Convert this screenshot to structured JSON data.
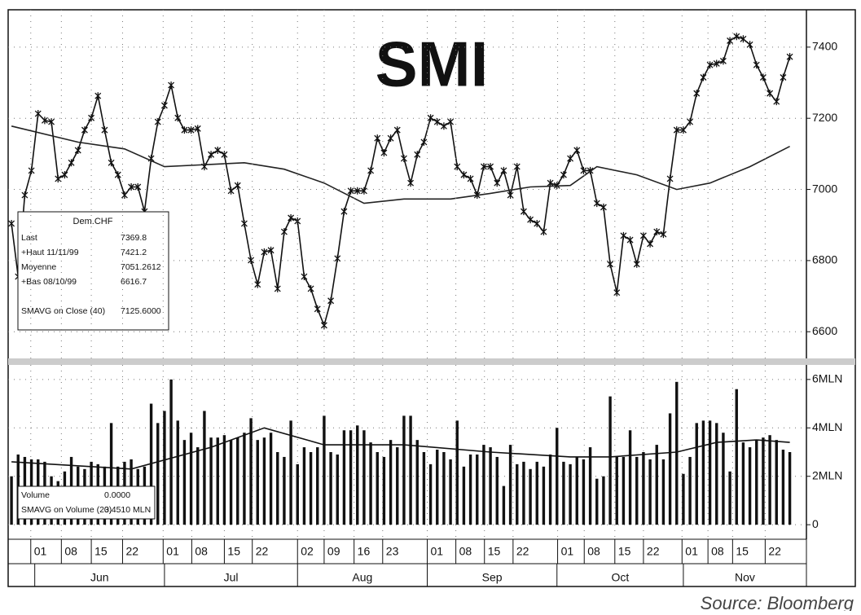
{
  "chart_data": [
    {
      "type": "line",
      "title": "SMI",
      "xlim": [
        -0.5,
        119.5
      ],
      "ylim": [
        6525,
        7505
      ],
      "yticks": [
        6600,
        6800,
        7000,
        7200,
        7400
      ],
      "grid": true,
      "series": [
        {
          "name": "Dem.CHF",
          "color": "#111111",
          "marker": true,
          "values": [
            6904,
            6755,
            6984,
            7053,
            7213,
            7194,
            7190,
            7030,
            7041,
            7075,
            7110,
            7167,
            7201,
            7263,
            7167,
            7075,
            7041,
            6984,
            7007,
            7007,
            6938,
            7087,
            7190,
            7236,
            7293,
            7201,
            7167,
            7167,
            7171,
            7064,
            7098,
            7110,
            7098,
            6996,
            7011,
            6904,
            6801,
            6733,
            6824,
            6829,
            6721,
            6881,
            6920,
            6911,
            6755,
            6721,
            6664,
            6618,
            6687,
            6806,
            6938,
            6996,
            6996,
            6996,
            7053,
            7144,
            7103,
            7144,
            7167,
            7087,
            7018,
            7098,
            7133,
            7201,
            7190,
            7178,
            7190,
            7064,
            7041,
            7030,
            6984,
            7064,
            7064,
            7018,
            7053,
            6984,
            7064,
            6938,
            6915,
            6904,
            6881,
            7018,
            7011,
            7041,
            7087,
            7110,
            7053,
            7053,
            6961,
            6950,
            6790,
            6710,
            6870,
            6858,
            6790,
            6870,
            6847,
            6881,
            6874,
            7030,
            7167,
            7167,
            7190,
            7270,
            7315,
            7350,
            7354,
            7361,
            7418,
            7430,
            7423,
            7407,
            7350,
            7315,
            7270,
            7247,
            7315,
            7373
          ]
        },
        {
          "name": "SMAVG on Close (40)",
          "color": "#222222",
          "legend_value": "7125.6000",
          "x": [
            0,
            10,
            17,
            23,
            35,
            41,
            47,
            53,
            59,
            66,
            72,
            78,
            84,
            88,
            94,
            100,
            105,
            111,
            117
          ],
          "values": [
            7178,
            7133,
            7114,
            7064,
            7075,
            7057,
            7018,
            6961,
            6973,
            6973,
            6989,
            7007,
            7011,
            7064,
            7041,
            7000,
            7018,
            7064,
            7121
          ]
        }
      ],
      "legend_box": {
        "rows": [
          {
            "label": "Last",
            "value": "7369.8"
          },
          {
            "label": "+Haut 11/11/99",
            "value": "7421.2"
          },
          {
            "label": "Moyenne",
            "value": "7051.2612"
          },
          {
            "label": "+Bas 08/10/99",
            "value": "6616.7"
          }
        ]
      }
    },
    {
      "type": "bar",
      "xlim": [
        -0.5,
        119.5
      ],
      "ylim": [
        -0.6,
        6.6
      ],
      "yticks": [
        {
          "value": 6,
          "label": "6MLN"
        },
        {
          "value": 4,
          "label": "4MLN"
        },
        {
          "value": 2,
          "label": "2MLN"
        },
        0
      ],
      "grid": true,
      "xticks": [
        {
          "value": 2.9,
          "label": "01"
        },
        {
          "value": 7.5,
          "label": "08"
        },
        {
          "value": 12,
          "label": "15"
        },
        {
          "value": 16.7,
          "label": "22"
        },
        {
          "value": 22.8,
          "label": "01"
        },
        {
          "value": 27.1,
          "label": "08"
        },
        {
          "value": 32,
          "label": "15"
        },
        {
          "value": 36.2,
          "label": "22"
        },
        {
          "value": 43,
          "label": "02"
        },
        {
          "value": 47,
          "label": "09"
        },
        {
          "value": 51.5,
          "label": "16"
        },
        {
          "value": 55.8,
          "label": "23"
        },
        {
          "value": 62.5,
          "label": "01"
        },
        {
          "value": 66.8,
          "label": "08"
        },
        {
          "value": 71.1,
          "label": "15"
        },
        {
          "value": 75.4,
          "label": "22"
        },
        {
          "value": 82.1,
          "label": "01"
        },
        {
          "value": 86.1,
          "label": "08"
        },
        {
          "value": 90.7,
          "label": "15"
        },
        {
          "value": 95,
          "label": "22"
        },
        {
          "value": 100.8,
          "label": "01"
        },
        {
          "value": 104.7,
          "label": "08"
        },
        {
          "value": 108.4,
          "label": "15"
        },
        {
          "value": 113.3,
          "label": "22"
        }
      ],
      "months": [
        {
          "value": 3.5,
          "label": "Jun"
        },
        {
          "value": 23,
          "label": "Jul"
        },
        {
          "value": 43,
          "label": "Aug"
        },
        {
          "value": 62.5,
          "label": "Sep"
        },
        {
          "value": 82,
          "label": "Oct"
        },
        {
          "value": 101,
          "label": "Nov"
        }
      ],
      "series": [
        {
          "name": "Volume",
          "color": "#111111",
          "legend_value": "0.0000",
          "values": [
            2.0,
            2.9,
            2.8,
            2.7,
            2.7,
            2.6,
            2.0,
            1.8,
            2.2,
            2.8,
            2.4,
            2.3,
            2.6,
            2.5,
            2.4,
            4.2,
            2.4,
            2.6,
            2.7,
            2.3,
            2.4,
            5.0,
            4.2,
            4.7,
            6.0,
            4.3,
            3.5,
            3.8,
            3.2,
            4.7,
            3.6,
            3.6,
            3.7,
            3.5,
            3.6,
            3.8,
            4.4,
            3.5,
            3.6,
            3.8,
            3.0,
            2.8,
            4.3,
            2.5,
            3.2,
            3.0,
            3.2,
            4.5,
            3.0,
            2.9,
            3.9,
            3.9,
            4.1,
            3.9,
            3.4,
            3.0,
            2.8,
            3.5,
            3.2,
            4.5,
            4.5,
            3.5,
            3.0,
            2.5,
            3.1,
            3.0,
            2.7,
            4.3,
            2.4,
            2.9,
            2.9,
            3.3,
            3.2,
            2.8,
            1.6,
            3.3,
            2.5,
            2.6,
            2.3,
            2.6,
            2.4,
            2.9,
            4.0,
            2.6,
            2.5,
            2.8,
            2.7,
            3.2,
            1.9,
            2.0,
            5.3,
            2.8,
            2.8,
            3.9,
            2.8,
            3.0,
            2.7,
            3.3,
            2.7,
            4.6,
            5.9,
            2.1,
            2.8,
            4.2,
            4.3,
            4.3,
            4.2,
            3.8,
            2.2,
            5.6,
            3.4,
            3.2,
            3.5,
            3.6,
            3.7,
            3.5,
            3.1,
            3.0
          ]
        },
        {
          "name": "SMAVG on Volume (20)",
          "color": "#111111",
          "type": "line",
          "legend_value": "3.4510 MLN",
          "x": [
            0,
            18,
            30,
            38,
            47,
            59,
            72,
            84,
            90,
            100,
            106,
            112,
            117
          ],
          "values": [
            2.6,
            2.3,
            3.2,
            4.0,
            3.3,
            3.3,
            3.0,
            2.8,
            2.8,
            3.0,
            3.4,
            3.5,
            3.4
          ]
        }
      ]
    }
  ],
  "source": "Source: Bloomberg"
}
